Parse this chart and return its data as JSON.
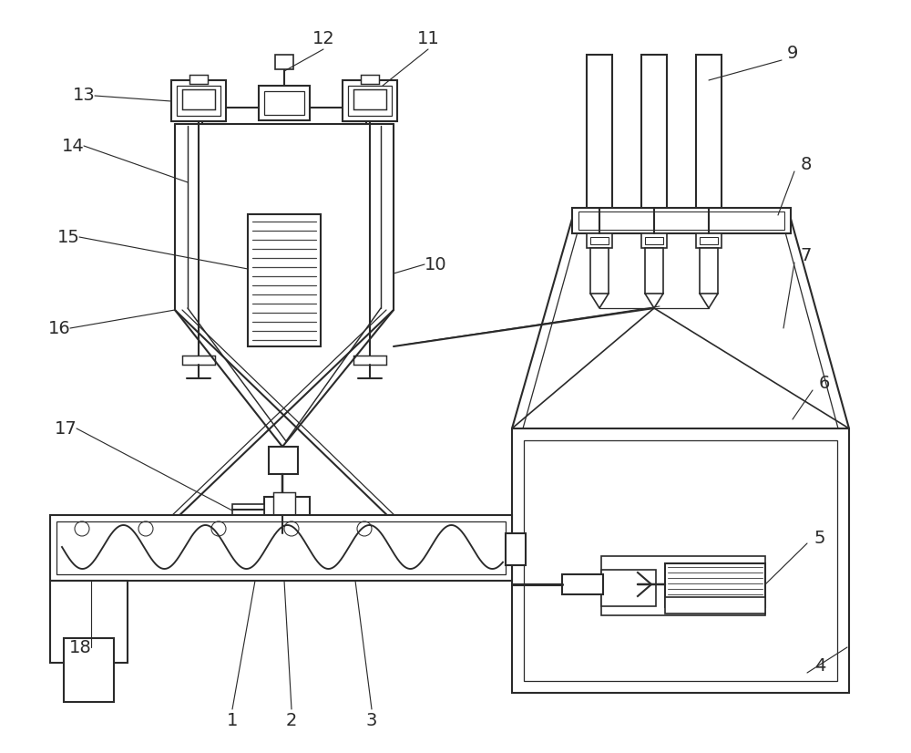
{
  "bg": "#ffffff",
  "lc": "#2a2a2a",
  "lw": 1.5
}
